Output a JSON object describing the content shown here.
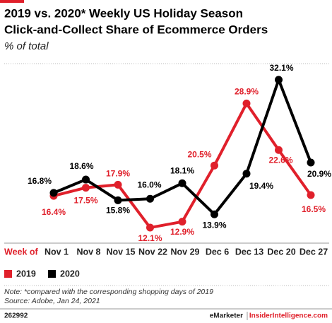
{
  "chart_data": {
    "type": "line",
    "title": [
      "2019 vs. 2020* Weekly US Holiday Season",
      "Click-and-Collect Share of Ecommerce Orders"
    ],
    "subtitle": "% of total",
    "x_label": "Week of",
    "categories": [
      "Nov 1",
      "Nov 8",
      "Nov 15",
      "Nov 22",
      "Nov 29",
      "Dec 6",
      "Dec 13",
      "Dec 20",
      "Dec 27"
    ],
    "series": [
      {
        "name": "2019",
        "color": "#e0202b",
        "values": [
          16.4,
          17.5,
          17.9,
          12.1,
          12.9,
          20.5,
          28.9,
          22.6,
          16.5
        ],
        "value_labels": [
          "16.4%",
          "17.5%",
          "17.9%",
          "12.1%",
          "12.9%",
          "20.5%",
          "28.9%",
          "22.6%",
          "16.5%"
        ]
      },
      {
        "name": "2020",
        "color": "#000000",
        "values": [
          16.8,
          18.6,
          15.8,
          16.0,
          18.1,
          13.9,
          19.4,
          32.1,
          20.9
        ],
        "value_labels": [
          "16.8%",
          "18.6%",
          "15.8%",
          "16.0%",
          "18.1%",
          "13.9%",
          "19.4%",
          "32.1%",
          "20.9%"
        ]
      }
    ],
    "ylim": [
      10,
      34
    ],
    "legend": "bottom-left",
    "note": "Note: *compared with the corresponding shopping days of 2019",
    "source": "Source: Adobe, Jan 24, 2021",
    "id": "262992",
    "brand": [
      "eMarketer",
      "InsiderIntelligence.com"
    ]
  }
}
